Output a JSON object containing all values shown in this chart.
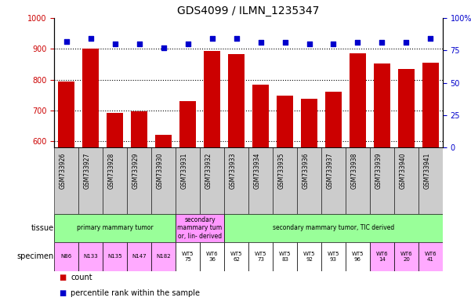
{
  "title": "GDS4099 / ILMN_1235347",
  "samples": [
    "GSM733926",
    "GSM733927",
    "GSM733928",
    "GSM733929",
    "GSM733930",
    "GSM733931",
    "GSM733932",
    "GSM733933",
    "GSM733934",
    "GSM733935",
    "GSM733936",
    "GSM733937",
    "GSM733938",
    "GSM733939",
    "GSM733940",
    "GSM733941"
  ],
  "counts": [
    795,
    901,
    693,
    697,
    621,
    730,
    893,
    882,
    783,
    748,
    737,
    762,
    886,
    852,
    836,
    856
  ],
  "percentile_ranks": [
    82,
    84,
    80,
    80,
    77,
    80,
    84,
    84,
    81,
    81,
    80,
    80,
    81,
    81,
    81,
    84
  ],
  "ylim_left": [
    580,
    1000
  ],
  "ylim_right": [
    0,
    100
  ],
  "yticks_left": [
    600,
    700,
    800,
    900,
    1000
  ],
  "yticks_right": [
    0,
    25,
    50,
    75,
    100
  ],
  "bar_color": "#cc0000",
  "dot_color": "#0000cc",
  "tissue_groups": [
    {
      "label": "primary mammary tumor",
      "start": 0,
      "end": 5,
      "color": "#99ff99"
    },
    {
      "label": "secondary\nmammary tum\nor, lin- derived",
      "start": 5,
      "end": 7,
      "color": "#ff99ff"
    },
    {
      "label": "secondary mammary tumor, TIC derived",
      "start": 7,
      "end": 16,
      "color": "#99ff99"
    }
  ],
  "specimen_labels": [
    "N86",
    "N133",
    "N135",
    "N147",
    "N182",
    "WT5\n75",
    "WT6\n36",
    "WT5\n62",
    "WT5\n73",
    "WT5\n83",
    "WT5\n92",
    "WT5\n93",
    "WT5\n96",
    "WT6\n14",
    "WT6\n20",
    "WT6\n41"
  ],
  "specimen_colors": [
    "#ffaaff",
    "#ffaaff",
    "#ffaaff",
    "#ffaaff",
    "#ffaaff",
    "#ffffff",
    "#ffffff",
    "#ffffff",
    "#ffffff",
    "#ffffff",
    "#ffffff",
    "#ffffff",
    "#ffffff",
    "#ffaaff",
    "#ffaaff",
    "#ffaaff"
  ],
  "sample_bg_color": "#cccccc",
  "legend_count_color": "#cc0000",
  "legend_pct_color": "#0000cc",
  "left_label_color": "#000000",
  "right_label_color": "#0000cc"
}
